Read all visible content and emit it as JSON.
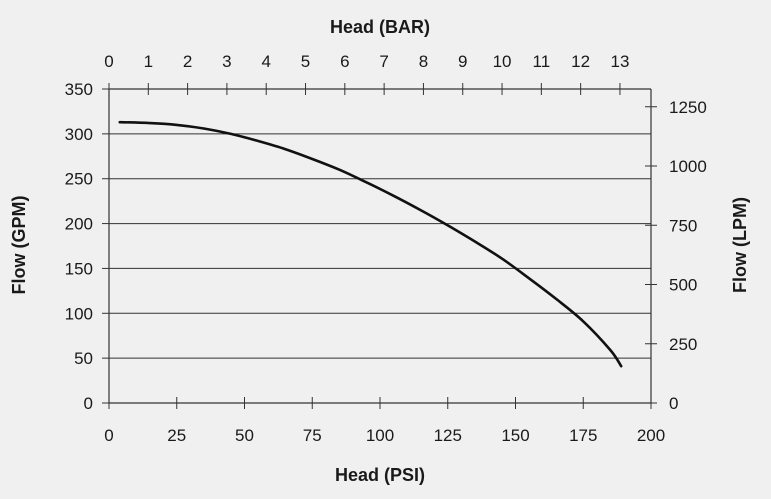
{
  "chart_data": {
    "type": "line",
    "title": "",
    "xlabel": "Head (PSI)",
    "x2label": "Head (BAR)",
    "ylabel": "Flow (GPM)",
    "y2label": "Flow (LPM)",
    "xlim": [
      0,
      200
    ],
    "x2lim": [
      0,
      13.79
    ],
    "ylim": [
      0,
      350
    ],
    "y2lim": [
      0,
      1324.9
    ],
    "x_ticks": [
      0,
      25,
      50,
      75,
      100,
      125,
      150,
      175,
      200
    ],
    "x_tick_labels": [
      "0",
      "25",
      "50",
      "75",
      "100",
      "125",
      "150",
      "175",
      "200"
    ],
    "x2_ticks": [
      0,
      1,
      2,
      3,
      4,
      5,
      6,
      7,
      8,
      9,
      10,
      11,
      12,
      13
    ],
    "x2_tick_labels": [
      "0",
      "1",
      "2",
      "3",
      "4",
      "5",
      "6",
      "7",
      "8",
      "9",
      "10",
      "11",
      "12",
      "13"
    ],
    "y_ticks": [
      0,
      50,
      100,
      150,
      200,
      250,
      300,
      350
    ],
    "y_tick_labels": [
      "0",
      "50",
      "100",
      "150",
      "200",
      "250",
      "300",
      "350"
    ],
    "y2_ticks": [
      0,
      250,
      500,
      750,
      1000,
      1250
    ],
    "y2_tick_labels": [
      "0",
      "250",
      "500",
      "750",
      "1000",
      "1250"
    ],
    "grid": "horizontal",
    "colors": {
      "line": "#111111",
      "grid": "#333333",
      "background": "#f0f0f0"
    },
    "series": [
      {
        "x": [
          4,
          15,
          25,
          35,
          45,
          55,
          65,
          75,
          85,
          95,
          105,
          115,
          125,
          135,
          145,
          155,
          165,
          175,
          185,
          189
        ],
        "values": [
          313,
          312,
          310,
          306,
          300,
          292,
          283,
          272,
          260,
          246,
          231,
          215,
          198,
          180,
          161,
          139,
          116,
          91,
          59,
          41
        ]
      }
    ]
  }
}
